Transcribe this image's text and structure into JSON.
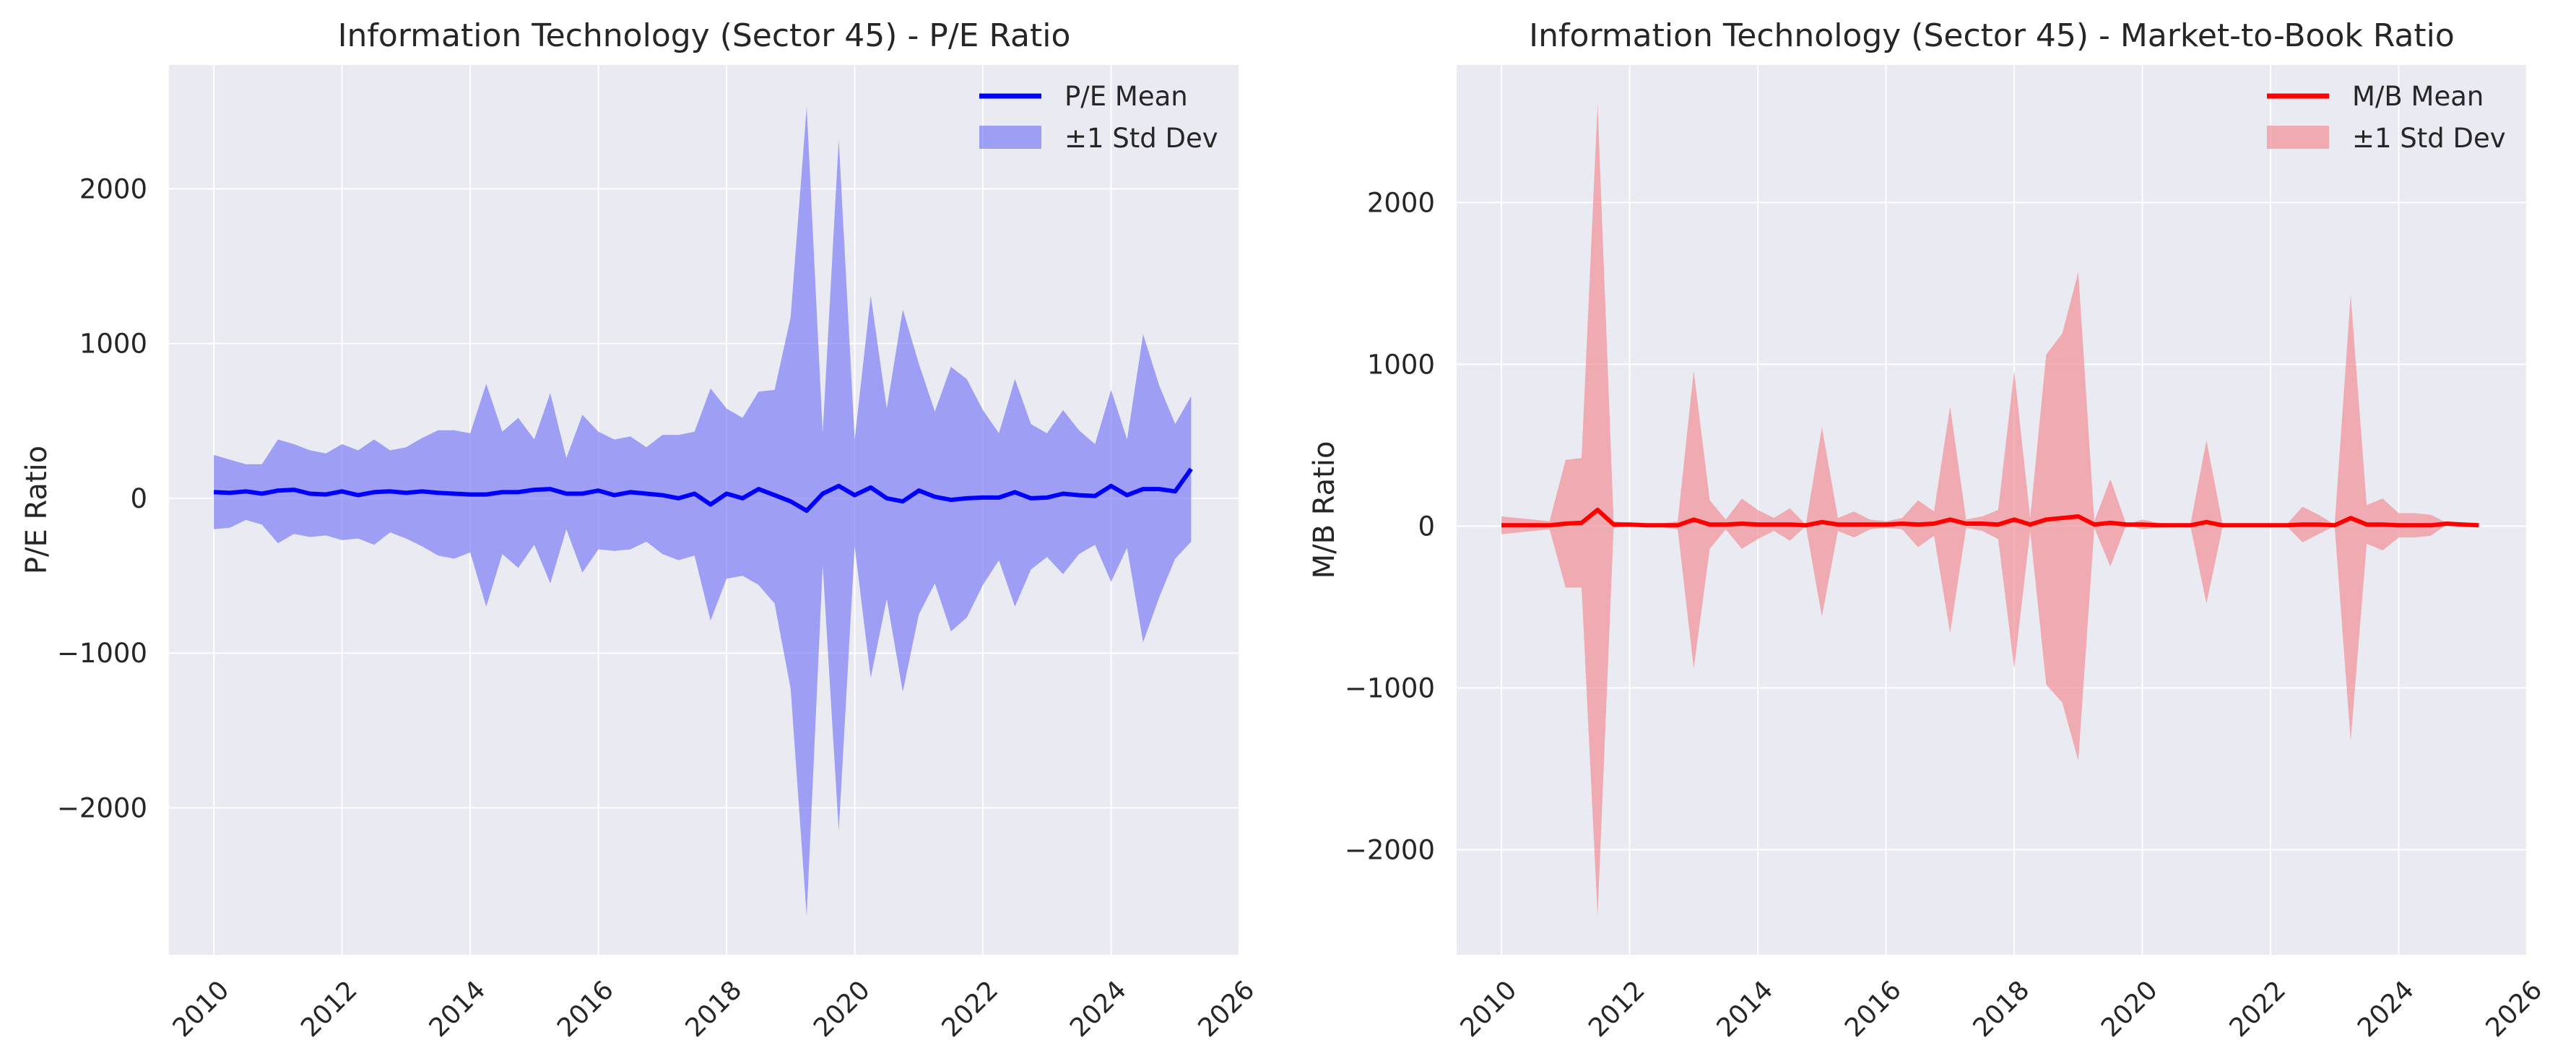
{
  "colors": {
    "axes_background": "#EAEAF2",
    "grid": "#ffffff",
    "pe_line": "#0000FF",
    "pe_band": "#7B7BF5",
    "mb_line": "#FF0000",
    "mb_band": "#F28C93"
  },
  "chart_data": [
    {
      "type": "area",
      "title": "Information Technology (Sector 45) - P/E Ratio",
      "xlabel": "",
      "ylabel": "P/E Ratio",
      "xlim": [
        2009.3,
        2026
      ],
      "ylim": [
        -2950,
        2800
      ],
      "xticks": [
        2010,
        2012,
        2014,
        2016,
        2018,
        2020,
        2022,
        2024,
        2026
      ],
      "yticks": [
        -2000,
        -1000,
        0,
        1000,
        2000
      ],
      "xtick_labels": [
        "2010",
        "2012",
        "2014",
        "2016",
        "2018",
        "2020",
        "2022",
        "2024",
        "2026"
      ],
      "ytick_labels": [
        "−2000",
        "−1000",
        "0",
        "1000",
        "2000"
      ],
      "grid": true,
      "legend_position": "top-right",
      "legend": [
        "P/E Mean",
        "±1 Std Dev"
      ],
      "x": [
        2010.0,
        2010.25,
        2010.5,
        2010.75,
        2011.0,
        2011.25,
        2011.5,
        2011.75,
        2012.0,
        2012.25,
        2012.5,
        2012.75,
        2013.0,
        2013.25,
        2013.5,
        2013.75,
        2014.0,
        2014.25,
        2014.5,
        2014.75,
        2015.0,
        2015.25,
        2015.5,
        2015.75,
        2016.0,
        2016.25,
        2016.5,
        2016.75,
        2017.0,
        2017.25,
        2017.5,
        2017.75,
        2018.0,
        2018.25,
        2018.5,
        2018.75,
        2019.0,
        2019.25,
        2019.5,
        2019.75,
        2020.0,
        2020.25,
        2020.5,
        2020.75,
        2021.0,
        2021.25,
        2021.5,
        2021.75,
        2022.0,
        2022.25,
        2022.5,
        2022.75,
        2023.0,
        2023.25,
        2023.5,
        2023.75,
        2024.0,
        2024.25,
        2024.5,
        2024.75,
        2025.0,
        2025.25
      ],
      "series": [
        {
          "name": "P/E Mean",
          "values": [
            40,
            35,
            45,
            30,
            50,
            55,
            30,
            25,
            45,
            20,
            40,
            45,
            35,
            45,
            35,
            30,
            25,
            25,
            40,
            40,
            55,
            60,
            30,
            30,
            50,
            20,
            40,
            30,
            20,
            0,
            30,
            -40,
            30,
            0,
            60,
            20,
            -20,
            -80,
            30,
            80,
            20,
            70,
            0,
            -20,
            50,
            10,
            -10,
            0,
            5,
            5,
            40,
            0,
            5,
            30,
            20,
            15,
            80,
            20,
            60,
            60,
            45,
            190
          ]
        },
        {
          "name": "±1 Std Dev",
          "upper": [
            280,
            250,
            220,
            220,
            380,
            350,
            310,
            290,
            350,
            310,
            380,
            310,
            330,
            390,
            440,
            440,
            420,
            740,
            430,
            520,
            380,
            680,
            260,
            540,
            430,
            380,
            400,
            330,
            410,
            410,
            430,
            710,
            580,
            520,
            690,
            700,
            1170,
            2530,
            420,
            2320,
            380,
            1310,
            580,
            1220,
            870,
            560,
            850,
            770,
            570,
            420,
            770,
            480,
            420,
            570,
            440,
            350,
            700,
            380,
            1060,
            730,
            480,
            660
          ],
          "lower": [
            -200,
            -190,
            -140,
            -170,
            -290,
            -230,
            -250,
            -240,
            -270,
            -260,
            -300,
            -220,
            -260,
            -310,
            -370,
            -390,
            -350,
            -700,
            -360,
            -450,
            -300,
            -550,
            -200,
            -480,
            -330,
            -340,
            -330,
            -280,
            -360,
            -400,
            -370,
            -790,
            -520,
            -500,
            -560,
            -680,
            -1230,
            -2700,
            -430,
            -2150,
            -310,
            -1160,
            -650,
            -1250,
            -750,
            -550,
            -860,
            -770,
            -560,
            -400,
            -700,
            -460,
            -380,
            -490,
            -360,
            -300,
            -540,
            -320,
            -930,
            -640,
            -390,
            -280
          ]
        }
      ]
    },
    {
      "type": "area",
      "title": "Information Technology (Sector 45) - Market-to-Book Ratio",
      "xlabel": "",
      "ylabel": "M/B Ratio",
      "xlim": [
        2009.3,
        2026
      ],
      "ylim": [
        -2650,
        2850
      ],
      "xticks": [
        2010,
        2012,
        2014,
        2016,
        2018,
        2020,
        2022,
        2024,
        2026
      ],
      "yticks": [
        -2000,
        -1000,
        0,
        1000,
        2000
      ],
      "xtick_labels": [
        "2010",
        "2012",
        "2014",
        "2016",
        "2018",
        "2020",
        "2022",
        "2024",
        "2026"
      ],
      "ytick_labels": [
        "−2000",
        "−1000",
        "0",
        "1000",
        "2000"
      ],
      "grid": true,
      "legend_position": "top-right",
      "legend": [
        "M/B Mean",
        "±1 Std Dev"
      ],
      "x": [
        2010.0,
        2010.25,
        2010.5,
        2010.75,
        2011.0,
        2011.25,
        2011.5,
        2011.75,
        2012.0,
        2012.25,
        2012.5,
        2012.75,
        2013.0,
        2013.25,
        2013.5,
        2013.75,
        2014.0,
        2014.25,
        2014.5,
        2014.75,
        2015.0,
        2015.25,
        2015.5,
        2015.75,
        2016.0,
        2016.25,
        2016.5,
        2016.75,
        2017.0,
        2017.25,
        2017.5,
        2017.75,
        2018.0,
        2018.25,
        2018.5,
        2018.75,
        2019.0,
        2019.25,
        2019.5,
        2019.75,
        2020.0,
        2020.25,
        2020.5,
        2020.75,
        2021.0,
        2021.25,
        2021.5,
        2021.75,
        2022.0,
        2022.25,
        2022.5,
        2022.75,
        2023.0,
        2023.25,
        2023.5,
        2023.75,
        2024.0,
        2024.25,
        2024.5,
        2024.75,
        2025.0,
        2025.25
      ],
      "series": [
        {
          "name": "M/B Mean",
          "values": [
            5,
            5,
            5,
            5,
            15,
            20,
            100,
            10,
            10,
            5,
            5,
            5,
            40,
            10,
            10,
            15,
            10,
            10,
            10,
            5,
            25,
            10,
            10,
            10,
            10,
            15,
            10,
            15,
            40,
            15,
            15,
            10,
            40,
            10,
            40,
            50,
            60,
            10,
            20,
            10,
            10,
            5,
            5,
            5,
            25,
            5,
            5,
            5,
            5,
            5,
            10,
            10,
            5,
            50,
            10,
            10,
            5,
            5,
            5,
            15,
            10,
            5
          ]
        },
        {
          "name": "±1 Std Dev",
          "upper": [
            60,
            50,
            40,
            30,
            410,
            420,
            2610,
            30,
            20,
            10,
            15,
            30,
            960,
            160,
            40,
            170,
            100,
            50,
            110,
            10,
            610,
            50,
            90,
            40,
            30,
            50,
            160,
            90,
            740,
            40,
            60,
            100,
            960,
            50,
            1060,
            1190,
            1570,
            30,
            290,
            10,
            40,
            20,
            15,
            10,
            530,
            15,
            10,
            10,
            10,
            10,
            120,
            70,
            10,
            1430,
            130,
            170,
            80,
            80,
            70,
            20,
            20,
            10
          ]
        },
        {
          "name": "",
          "lower": [
            -50,
            -40,
            -30,
            -20,
            -380,
            -380,
            -2410,
            -10,
            0,
            0,
            -5,
            -20,
            -880,
            -140,
            -20,
            -140,
            -80,
            -30,
            -90,
            0,
            -560,
            -30,
            -70,
            -20,
            -10,
            -20,
            -130,
            -60,
            -660,
            -10,
            -30,
            -80,
            -880,
            -30,
            -980,
            -1090,
            -1450,
            -10,
            -250,
            10,
            -20,
            -10,
            -5,
            0,
            -480,
            -5,
            0,
            0,
            0,
            0,
            -100,
            -50,
            0,
            -1330,
            -110,
            -150,
            -70,
            -70,
            -60,
            10,
            0,
            0
          ]
        }
      ]
    }
  ]
}
